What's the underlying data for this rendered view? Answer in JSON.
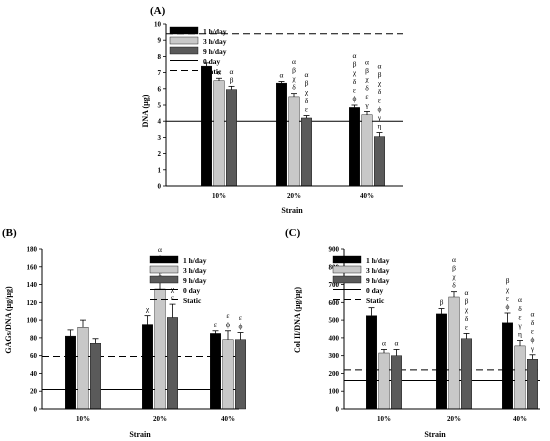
{
  "colors": {
    "s1": "#000000",
    "s3": "#c8c8c8",
    "s9": "#5a5a5a",
    "axis": "#000000",
    "reference_line": "#000000",
    "error_bar": "#000000"
  },
  "chart_data": [
    {
      "type": "bar",
      "id": "A",
      "panel_label": "(A)",
      "xlabel": "Strain",
      "ylabel": "DNA (µg)",
      "categories": [
        "10%",
        "20%",
        "40%"
      ],
      "ylim": [
        0,
        10
      ],
      "yticks": [
        0,
        1,
        2,
        3,
        4,
        5,
        6,
        7,
        8,
        9,
        10
      ],
      "grid": false,
      "legend_position": "top-left",
      "series": [
        {
          "name": "1 h/day",
          "key": "s1",
          "values": [
            7.4,
            6.35,
            4.85
          ],
          "errors": [
            0.2,
            0.1,
            0.15
          ]
        },
        {
          "name": "3 h/day",
          "key": "s3",
          "values": [
            6.5,
            5.5,
            4.4
          ],
          "errors": [
            0.15,
            0.2,
            0.2
          ]
        },
        {
          "name": "9 h/day",
          "key": "s9",
          "values": [
            5.95,
            4.2,
            3.05
          ],
          "errors": [
            0.2,
            0.15,
            0.25
          ]
        }
      ],
      "references": [
        {
          "name": "0 day",
          "value": 4.0,
          "style": "solid"
        },
        {
          "name": "Static",
          "value": 9.4,
          "style": "dashed"
        }
      ],
      "annotations": [
        {
          "series": 1,
          "category": 0,
          "symbols": [
            "α"
          ]
        },
        {
          "series": 2,
          "category": 0,
          "symbols": [
            "α",
            "β"
          ]
        },
        {
          "series": 0,
          "category": 1,
          "symbols": [
            "α"
          ]
        },
        {
          "series": 1,
          "category": 1,
          "symbols": [
            "α",
            "β",
            "χ",
            "δ"
          ]
        },
        {
          "series": 2,
          "category": 1,
          "symbols": [
            "α",
            "β",
            "χ",
            "δ",
            "ε"
          ]
        },
        {
          "series": 0,
          "category": 2,
          "symbols": [
            "α",
            "β",
            "χ",
            "δ",
            "ε",
            "ϕ"
          ]
        },
        {
          "series": 1,
          "category": 2,
          "symbols": [
            "α",
            "β",
            "χ",
            "δ",
            "ε",
            "γ"
          ]
        },
        {
          "series": 2,
          "category": 2,
          "symbols": [
            "α",
            "β",
            "χ",
            "δ",
            "ε",
            "ϕ",
            "γ",
            "η"
          ]
        }
      ]
    },
    {
      "type": "bar",
      "id": "B",
      "panel_label": "(B)",
      "xlabel": "Strain",
      "ylabel": "GAGs/DNA (µg/µg)",
      "categories": [
        "10%",
        "20%",
        "40%"
      ],
      "ylim": [
        0,
        180
      ],
      "yticks": [
        0,
        20,
        40,
        60,
        80,
        100,
        120,
        140,
        160,
        180
      ],
      "grid": false,
      "legend_position": "top-right",
      "series": [
        {
          "name": "1 h/day",
          "key": "s1",
          "values": [
            82,
            95,
            85
          ],
          "errors": [
            7,
            10,
            3
          ]
        },
        {
          "name": "3 h/day",
          "key": "s3",
          "values": [
            92,
            135,
            78
          ],
          "errors": [
            8,
            8,
            10
          ]
        },
        {
          "name": "9 h/day",
          "key": "s9",
          "values": [
            74,
            103,
            78
          ],
          "errors": [
            5,
            15,
            8
          ]
        }
      ],
      "references": [
        {
          "name": "0 day",
          "value": 22,
          "style": "solid"
        },
        {
          "name": "Static",
          "value": 59,
          "style": "dashed"
        }
      ],
      "annotations": [
        {
          "series": 0,
          "category": 1,
          "symbols": [
            "χ"
          ]
        },
        {
          "series": 1,
          "category": 1,
          "symbols": [
            "α",
            "β",
            "χ",
            "δ"
          ]
        },
        {
          "series": 2,
          "category": 1,
          "symbols": [
            "χ",
            "ε"
          ]
        },
        {
          "series": 0,
          "category": 2,
          "symbols": [
            "ε"
          ]
        },
        {
          "series": 1,
          "category": 2,
          "symbols": [
            "ε",
            "ϕ"
          ]
        },
        {
          "series": 2,
          "category": 2,
          "symbols": [
            "ε",
            "ϕ"
          ]
        }
      ]
    },
    {
      "type": "bar",
      "id": "C",
      "panel_label": "(C)",
      "xlabel": "Strain",
      "ylabel": "Col II/DNA (µg/µg)",
      "categories": [
        "10%",
        "20%",
        "40%"
      ],
      "ylim": [
        0,
        900
      ],
      "yticks": [
        0,
        100,
        200,
        300,
        400,
        500,
        600,
        700,
        800,
        900
      ],
      "grid": false,
      "legend_position": "top-right",
      "series": [
        {
          "name": "1 h/day",
          "key": "s1",
          "values": [
            525,
            535,
            485
          ],
          "errors": [
            45,
            30,
            55
          ]
        },
        {
          "name": "3 h/day",
          "key": "s3",
          "values": [
            315,
            630,
            355
          ],
          "errors": [
            20,
            30,
            30
          ]
        },
        {
          "name": "9 h/day",
          "key": "s9",
          "values": [
            300,
            395,
            280
          ],
          "errors": [
            35,
            30,
            25
          ]
        }
      ],
      "references": [
        {
          "name": "0 day",
          "value": 160,
          "style": "solid"
        },
        {
          "name": "Static",
          "value": 220,
          "style": "dashed"
        }
      ],
      "annotations": [
        {
          "series": 1,
          "category": 0,
          "symbols": [
            "α"
          ]
        },
        {
          "series": 2,
          "category": 0,
          "symbols": [
            "α"
          ]
        },
        {
          "series": 0,
          "category": 1,
          "symbols": [
            "β"
          ]
        },
        {
          "series": 1,
          "category": 1,
          "symbols": [
            "α",
            "β",
            "χ",
            "δ"
          ]
        },
        {
          "series": 2,
          "category": 1,
          "symbols": [
            "α",
            "β",
            "χ",
            "δ",
            "ε"
          ]
        },
        {
          "series": 0,
          "category": 2,
          "symbols": [
            "β",
            "χ",
            "ε",
            "ϕ"
          ]
        },
        {
          "series": 1,
          "category": 2,
          "symbols": [
            "α",
            "δ",
            "ε",
            "γ",
            "η"
          ]
        },
        {
          "series": 2,
          "category": 2,
          "symbols": [
            "α",
            "δ",
            "ε",
            "ϕ",
            "γ"
          ]
        }
      ]
    }
  ]
}
